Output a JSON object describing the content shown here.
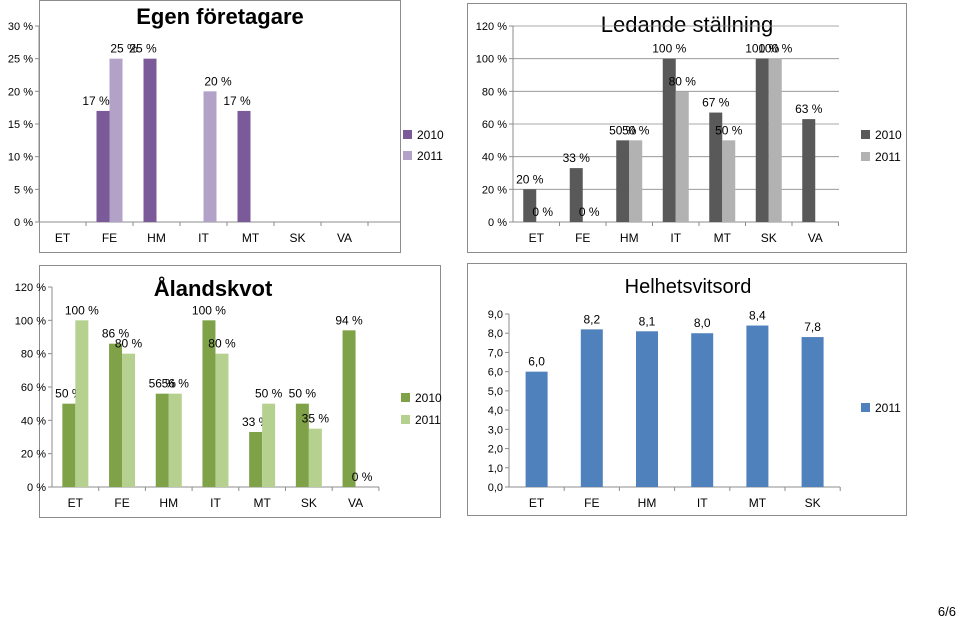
{
  "page": {
    "number": "6/6"
  },
  "chart_data": [
    {
      "id": "egen",
      "type": "bar",
      "title": "Egen företagare",
      "categories": [
        "ET",
        "FE",
        "HM",
        "IT",
        "MT",
        "SK",
        "VA"
      ],
      "series": [
        {
          "name": "2010",
          "color": "#7b5a99",
          "values": [
            0,
            17,
            25,
            0,
            17,
            0,
            0
          ]
        },
        {
          "name": "2011",
          "color": "#b3a2c8",
          "values": [
            0,
            25,
            0,
            20,
            0,
            0,
            0
          ]
        }
      ],
      "labels": [
        [
          null,
          "17 %",
          "25 %",
          null,
          "17 %",
          null,
          null
        ],
        [
          null,
          "25 %",
          null,
          "20 %",
          null,
          null,
          null
        ]
      ],
      "yticks": [
        "0 %",
        "5 %",
        "10 %",
        "15 %",
        "20 %",
        "25 %",
        "30 %"
      ],
      "ylim": [
        0,
        30
      ],
      "legend": "right"
    },
    {
      "id": "ledande",
      "type": "bar",
      "title": "Ledande ställning",
      "categories": [
        "ET",
        "FE",
        "HM",
        "IT",
        "MT",
        "SK",
        "VA"
      ],
      "series": [
        {
          "name": "2010",
          "color": "#595959",
          "values": [
            20,
            33,
            50,
            100,
            67,
            100,
            63
          ]
        },
        {
          "name": "2011",
          "color": "#b2b2b2",
          "values": [
            0,
            0,
            50,
            80,
            50,
            100,
            0
          ]
        }
      ],
      "labels": [
        [
          "20 %",
          "33 %",
          "50 %",
          "100 %",
          "67 %",
          "100 %",
          "63 %"
        ],
        [
          "0 %",
          "0 %",
          "50 %",
          "80 %",
          "50 %",
          "100 %",
          null
        ]
      ],
      "yticks": [
        "0 %",
        "20 %",
        "40 %",
        "60 %",
        "80 %",
        "100 %",
        "120 %"
      ],
      "ylim": [
        0,
        120
      ],
      "legend": "right"
    },
    {
      "id": "aland",
      "type": "bar",
      "title": "Ålandskvot",
      "categories": [
        "ET",
        "FE",
        "HM",
        "IT",
        "MT",
        "SK",
        "VA"
      ],
      "series": [
        {
          "name": "2010",
          "color": "#7fa147",
          "values": [
            50,
            86,
            56,
            100,
            33,
            50,
            94
          ]
        },
        {
          "name": "2011",
          "color": "#b6d08f",
          "values": [
            100,
            80,
            56,
            80,
            50,
            35,
            0
          ]
        }
      ],
      "labels": [
        [
          "50 %",
          "86 %",
          "56 %",
          "100 %",
          "33 %",
          "50 %",
          "94 %"
        ],
        [
          "100 %",
          "80 %",
          "56 %",
          "80 %",
          "50 %",
          "35 %",
          "0 %"
        ]
      ],
      "yticks": [
        "0 %",
        "20 %",
        "40 %",
        "60 %",
        "80 %",
        "100 %",
        "120 %"
      ],
      "ylim": [
        0,
        120
      ],
      "legend": "right"
    },
    {
      "id": "helhet",
      "type": "bar",
      "title": "Helhetsvitsord",
      "categories": [
        "ET",
        "FE",
        "HM",
        "IT",
        "MT",
        "SK"
      ],
      "series": [
        {
          "name": "2011",
          "color": "#4f81bd",
          "values": [
            6.0,
            8.2,
            8.1,
            8.0,
            8.4,
            7.8
          ]
        }
      ],
      "labels": [
        [
          "6,0",
          "8,2",
          "8,1",
          "8,0",
          "8,4",
          "7,8"
        ]
      ],
      "yticks": [
        "0,0",
        "1,0",
        "2,0",
        "3,0",
        "4,0",
        "5,0",
        "6,0",
        "7,0",
        "8,0",
        "9,0"
      ],
      "ylim": [
        0,
        9
      ],
      "legend": "right"
    }
  ]
}
